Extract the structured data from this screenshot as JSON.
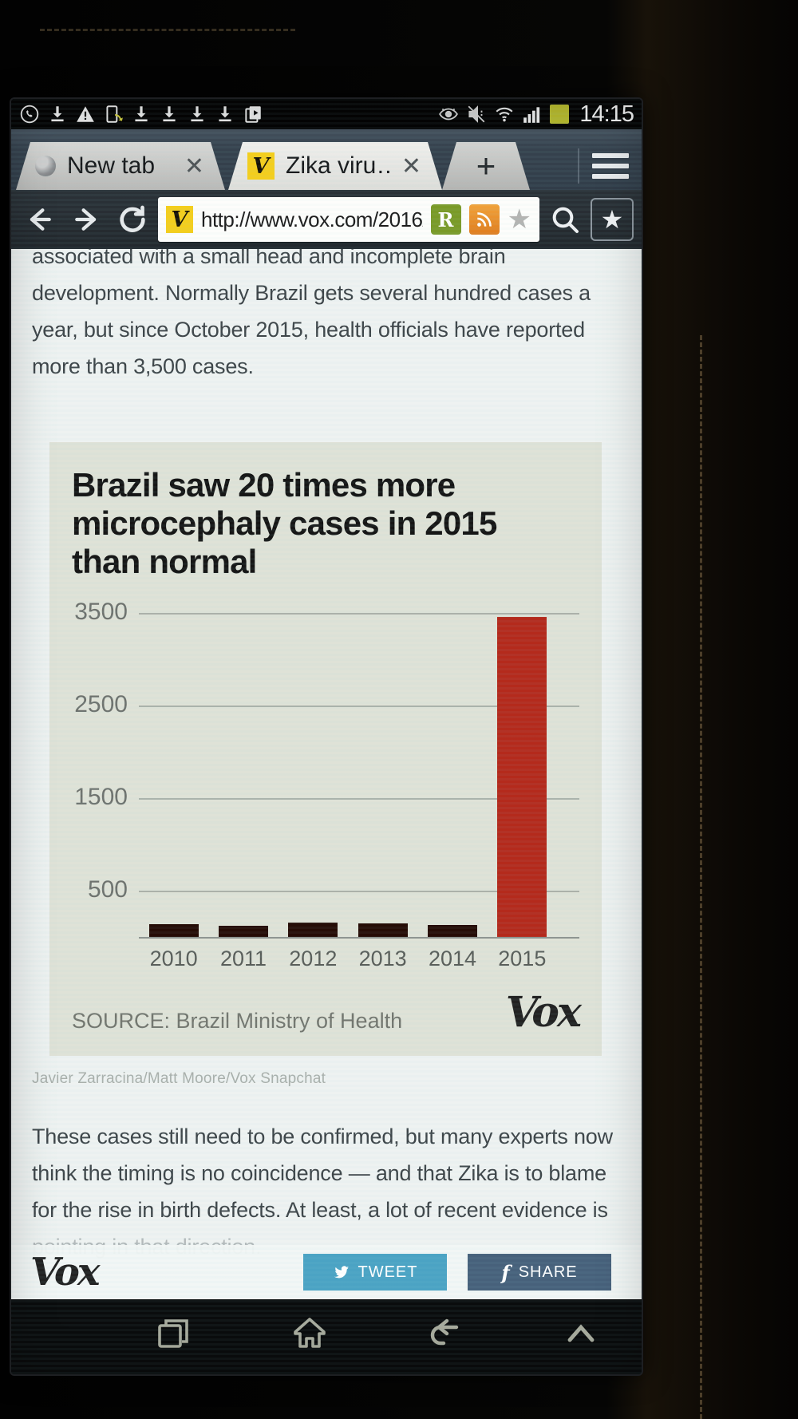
{
  "status_bar": {
    "time": "14:15",
    "battery_color": "#b5b82e",
    "left_icons": [
      "whatsapp-icon",
      "download-icon",
      "warning-icon",
      "screen-rotation-icon",
      "download-icon",
      "download-icon",
      "download-icon",
      "download-icon",
      "screenshot-icon"
    ],
    "right_icons": [
      "smart-stay-icon",
      "mute-icon",
      "wifi-icon",
      "signal-icon",
      "battery-icon"
    ]
  },
  "tab_bar": {
    "tabs": [
      {
        "label": "New tab",
        "active": false
      },
      {
        "label": "Zika viru…",
        "active": true,
        "favicon": "V"
      }
    ],
    "new_tab_label": "+"
  },
  "nav_bar": {
    "favicon": "V",
    "url": "http://www.vox.com/2016/",
    "reader_icon_label": "R"
  },
  "article": {
    "paragraph1": "associated with a small head and incomplete brain development. Normally Brazil gets several hundred cases a year, but since October 2015, health officials have reported more than 3,500 cases.",
    "credit": "Javier Zarracina/Matt Moore/Vox Snapchat",
    "paragraph2": "These cases still need to be confirmed, but many experts now think the timing is no coincidence — and that Zika is to blame for the rise in birth defects. At least, a lot of recent evidence is ",
    "paragraph2_fade": "pointing in that direction."
  },
  "chart_data": {
    "type": "bar",
    "title": "Brazil saw 20 times more microcephaly cases in 2015 than normal",
    "categories": [
      "2010",
      "2011",
      "2012",
      "2013",
      "2014",
      "2015"
    ],
    "values": [
      155,
      140,
      175,
      160,
      145,
      3470
    ],
    "yticks": [
      500,
      1500,
      2500,
      3500
    ],
    "ylim": [
      0,
      3600
    ],
    "grid": "on",
    "xlabel": "",
    "ylabel": "",
    "legend": "none",
    "bar_color_default": "#260c06",
    "bar_color_highlight": "#b42a1c",
    "highlight_index": 5,
    "background": "#dfe2d7",
    "source": "SOURCE: Brazil Ministry of Health",
    "logo": "Vox"
  },
  "share_bar": {
    "logo": "Vox",
    "tweet_label": "TWEET",
    "share_label": "SHARE",
    "tweet_color": "#4ba3c4",
    "share_color": "#47617b"
  },
  "android_nav": [
    "recent-apps-icon",
    "home-icon",
    "back-icon",
    "chevron-up-icon"
  ]
}
